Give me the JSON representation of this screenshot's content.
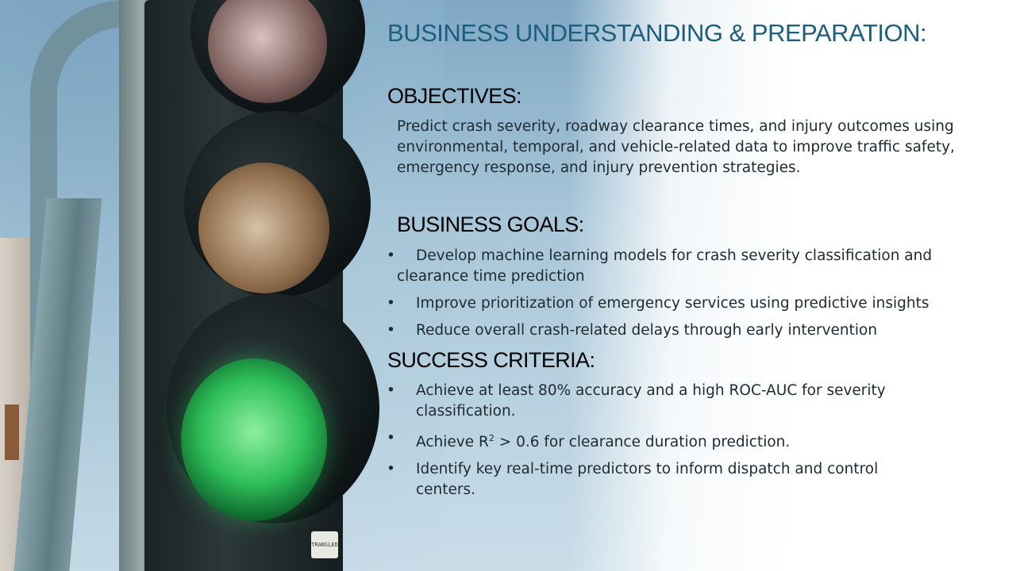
{
  "slide": {
    "title": "BUSINESS UNDERSTANDING & PREPARATION:",
    "objectives": {
      "heading": "OBJECTIVES:",
      "text": "Predict crash severity, roadway clearance times, and injury outcomes using environmental, temporal, and vehicle-related data to improve traffic safety, emergency response, and injury prevention strategies."
    },
    "business_goals": {
      "heading": "BUSINESS GOALS:",
      "bullet": "•",
      "items": [
        "Develop machine learning models for crash severity classification and clearance time prediction",
        "Improve prioritization of emergency services using predictive insights",
        "Reduce overall crash-related delays through early intervention"
      ]
    },
    "success_criteria": {
      "heading": "SUCCESS CRITERIA:",
      "bullet": "•",
      "items": [
        "Achieve at least 80% accuracy and a high ROC-AUC for severity classification.",
        "Achieve R",
        "Identify key real-time predictors to inform dispatch and control centers."
      ],
      "item2_superscript": "2",
      "item2_rest": " > 0.6 for clearance duration prediction."
    },
    "image": {
      "description_icon": "traffic-light-photo",
      "plate_text": "TRANSLED"
    },
    "colors": {
      "title": "#1b5e7e",
      "heading": "#000000",
      "body": "#1e2a30"
    }
  }
}
